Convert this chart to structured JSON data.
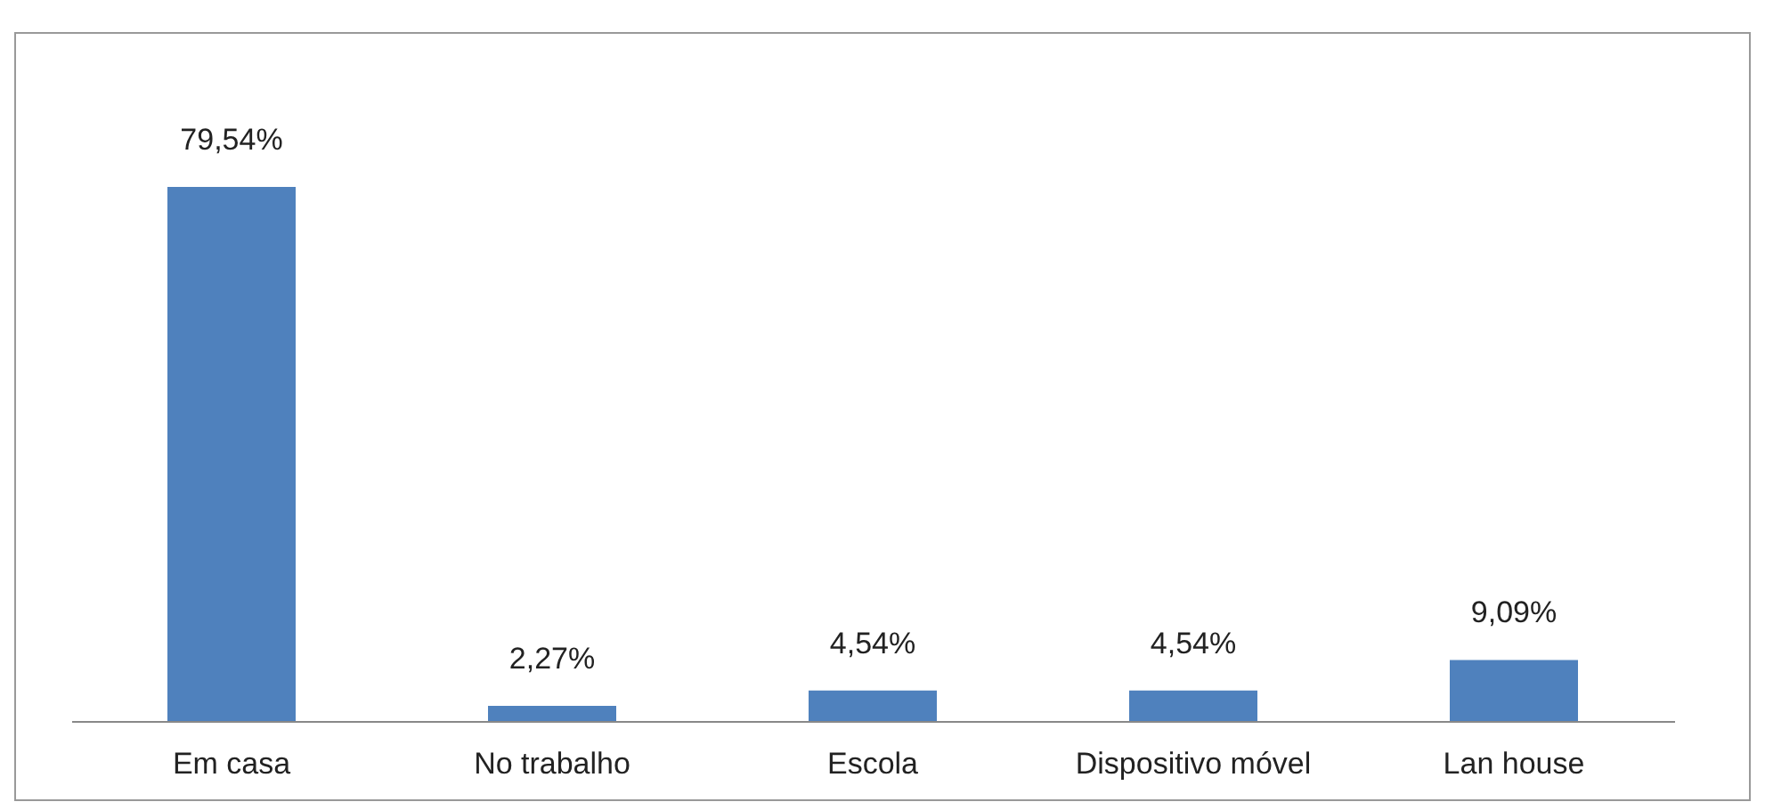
{
  "chart_data": {
    "type": "bar",
    "categories": [
      "Em casa",
      "No trabalho",
      "Escola",
      "Dispositivo móvel",
      "Lan house"
    ],
    "values": [
      79.54,
      2.27,
      4.54,
      4.54,
      9.09
    ],
    "value_labels": [
      "79,54%",
      "2,27%",
      "4,54%",
      "4,54%",
      "9,09%"
    ],
    "color": "#4f81bd",
    "grid": false
  }
}
